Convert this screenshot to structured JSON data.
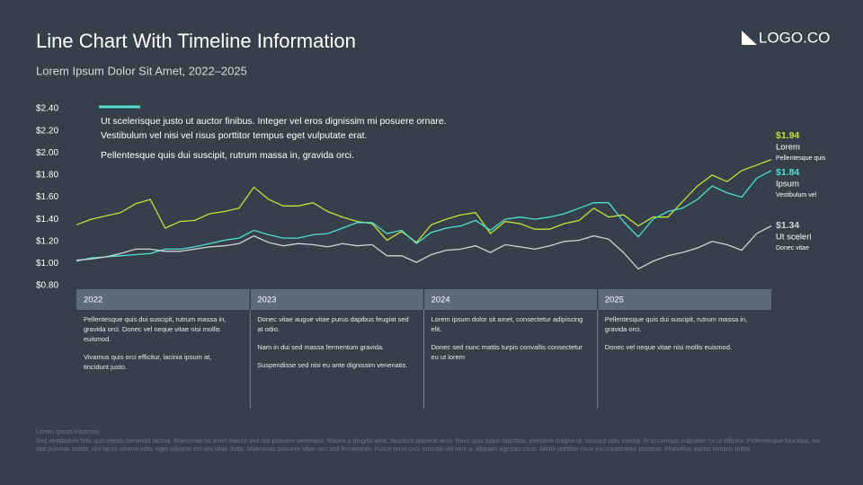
{
  "chart_data": {
    "type": "line",
    "title": "Line Chart With Timeline Information",
    "subtitle": "Lorem Ipsum Dolor Sit Amet, 2022–2025",
    "categories": [
      null,
      null,
      null,
      null,
      null,
      null,
      null,
      null,
      null,
      null,
      null,
      null,
      null,
      null,
      null,
      null,
      null,
      null,
      null,
      null,
      null,
      null,
      null,
      null,
      null,
      null,
      null,
      null,
      null,
      null,
      null,
      null,
      null,
      null,
      null,
      null,
      null,
      null,
      null,
      null,
      null,
      null,
      null,
      null,
      null,
      null,
      null,
      null
    ],
    "ylim": [
      0.8,
      2.4
    ],
    "yticks": [
      {
        "value": 0.8,
        "label": "$0.80"
      },
      {
        "value": 1.0,
        "label": "$1.00"
      },
      {
        "value": 1.2,
        "label": "$1.20"
      },
      {
        "value": 1.4,
        "label": "$1.40"
      },
      {
        "value": 1.6,
        "label": "$1.60"
      },
      {
        "value": 1.8,
        "label": "$1.80"
      },
      {
        "value": 2.0,
        "label": "$2.00"
      },
      {
        "value": 2.2,
        "label": "$2.20"
      },
      {
        "value": 2.4,
        "label": "$2.40"
      }
    ],
    "grid": false,
    "annotation": [
      "Ut scelerisque justo ut auctor finibus. Integer vel eros dignissim mi posuere ornare. Vestibulum vel nisi vel risus porttitor tempus eget vulputate erat.",
      "Pellentesque quis dui suscipit, rutrum massa in, gravida orci."
    ],
    "series": [
      {
        "name": "Lorem",
        "description": "Pellentesque quis",
        "last_label": "$1.94",
        "color": "#c5e03a",
        "values": [
          1.35,
          1.4,
          1.43,
          1.46,
          1.54,
          1.58,
          1.32,
          1.38,
          1.39,
          1.45,
          1.47,
          1.5,
          1.69,
          1.58,
          1.52,
          1.52,
          1.55,
          1.47,
          1.42,
          1.38,
          1.36,
          1.21,
          1.29,
          1.19,
          1.35,
          1.4,
          1.44,
          1.46,
          1.27,
          1.38,
          1.36,
          1.31,
          1.31,
          1.36,
          1.39,
          1.5,
          1.42,
          1.44,
          1.34,
          1.42,
          1.42,
          1.56,
          1.7,
          1.8,
          1.74,
          1.84,
          1.89,
          1.94
        ]
      },
      {
        "name": "Ipsum",
        "description": "Vestibulum vel",
        "last_label": "$1.84",
        "color": "#4de0d0",
        "values": [
          1.02,
          1.05,
          1.06,
          1.07,
          1.08,
          1.09,
          1.13,
          1.13,
          1.15,
          1.18,
          1.21,
          1.23,
          1.3,
          1.26,
          1.23,
          1.23,
          1.26,
          1.27,
          1.32,
          1.37,
          1.37,
          1.27,
          1.3,
          1.18,
          1.28,
          1.32,
          1.34,
          1.39,
          1.3,
          1.4,
          1.42,
          1.4,
          1.42,
          1.45,
          1.5,
          1.55,
          1.55,
          1.38,
          1.24,
          1.4,
          1.47,
          1.5,
          1.58,
          1.7,
          1.64,
          1.6,
          1.77,
          1.84
        ]
      },
      {
        "name": "Ut sceleri",
        "description": "Donec vitae",
        "last_label": "$1.34",
        "color": "#d0d3d6",
        "values": [
          1.03,
          1.04,
          1.06,
          1.09,
          1.13,
          1.13,
          1.11,
          1.11,
          1.13,
          1.15,
          1.16,
          1.18,
          1.25,
          1.19,
          1.16,
          1.18,
          1.17,
          1.15,
          1.18,
          1.16,
          1.17,
          1.07,
          1.07,
          1.01,
          1.08,
          1.12,
          1.13,
          1.16,
          1.1,
          1.17,
          1.15,
          1.13,
          1.16,
          1.2,
          1.21,
          1.25,
          1.22,
          1.1,
          0.95,
          1.02,
          1.07,
          1.1,
          1.14,
          1.2,
          1.17,
          1.12,
          1.27,
          1.34
        ]
      }
    ]
  },
  "logo": "LOGO.CO",
  "timeline": [
    {
      "year": "2022",
      "paragraphs": [
        "Pellentesque quis dui suscipit, rutrum massa in, gravida orci. Donec vel neque vitae nisi mollis euismod.",
        "Vivamus quis orci efficitur, lacinia ipsum at, tincidunt justo."
      ]
    },
    {
      "year": "2023",
      "paragraphs": [
        "Donec vitae augue vitae purus dapibus feugiat sed at odio.",
        "Nam in dui sed massa fermentum gravida.",
        "Suspendisse sed nisi eu ante dignissim venenatis."
      ]
    },
    {
      "year": "2024",
      "paragraphs": [
        "Lorem ipsum dolor sit amet, consectetur adipiscing elit.",
        "Donec sed nunc mattis turpis convallis consectetur eu ut lorem"
      ]
    },
    {
      "year": "2025",
      "paragraphs": [
        "Pellentesque quis dui suscipit, rutrum massa in, gravida orci.",
        "Donec vel neque vitae nisi mollis euismod."
      ]
    }
  ],
  "footnote": {
    "title": "Lorem Ipsum Footnote.",
    "text": "Sed vestibulum felis quis metus hendrerit lacinia. Maecenas sit amet mauris sed nisl posuere venenatis. Mauris a fringilla ante, faucibus placerat arcu. Nunc quis turpis faucibus, interdum magna ut, suscipit odio massa. In accumsan vulputate mi ut efficitur. Pellentesque faucibus, leo sed pulvinar mattis, nisl lacus viverra odio, eget volutpat est nisi vitae dolor. Maecenas posuere vitae orci sed fermentum. Fusce nunc orci, suscipit vel sem a, aliquam egestas risus. Morbi porttitor risus eu consectetur placerat. Phasellus auctor tempus tortor."
  }
}
